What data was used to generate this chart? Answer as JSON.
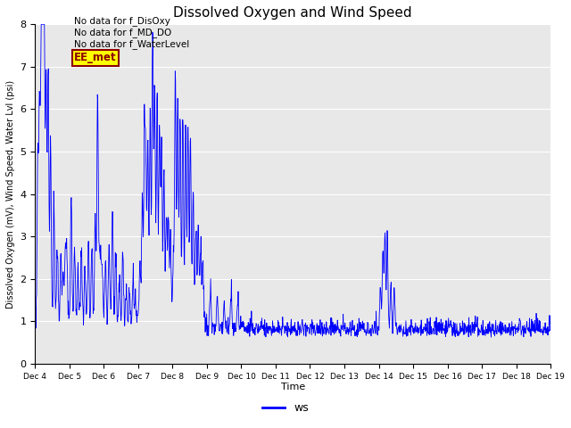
{
  "title": "Dissolved Oxygen and Wind Speed",
  "ylabel": "Dissolved Oxygen (mV), Wind Speed, Water Lvl (psi)",
  "xlabel": "Time",
  "ylim": [
    0.0,
    8.0
  ],
  "yticks": [
    0.0,
    1.0,
    2.0,
    3.0,
    4.0,
    5.0,
    6.0,
    7.0,
    8.0
  ],
  "line_color": "blue",
  "line_label": "ws",
  "x_tick_labels": [
    "Dec 4",
    "Dec 5",
    "Dec 6",
    "Dec 7",
    "Dec 8",
    "Dec 9",
    "Dec 10",
    "Dec 11",
    "Dec 12",
    "Dec 13",
    "Dec 14",
    "Dec 15",
    "Dec 16",
    "Dec 17",
    "Dec 18",
    "Dec 19"
  ],
  "background_color": "#e8e8e8",
  "figure_bg": "#ffffff",
  "ann1": "No data for f_DisOxy",
  "ann2": "No data for f_MD_DO",
  "ann3": "No data for f_WaterLevel",
  "ee_text": "EE_met"
}
